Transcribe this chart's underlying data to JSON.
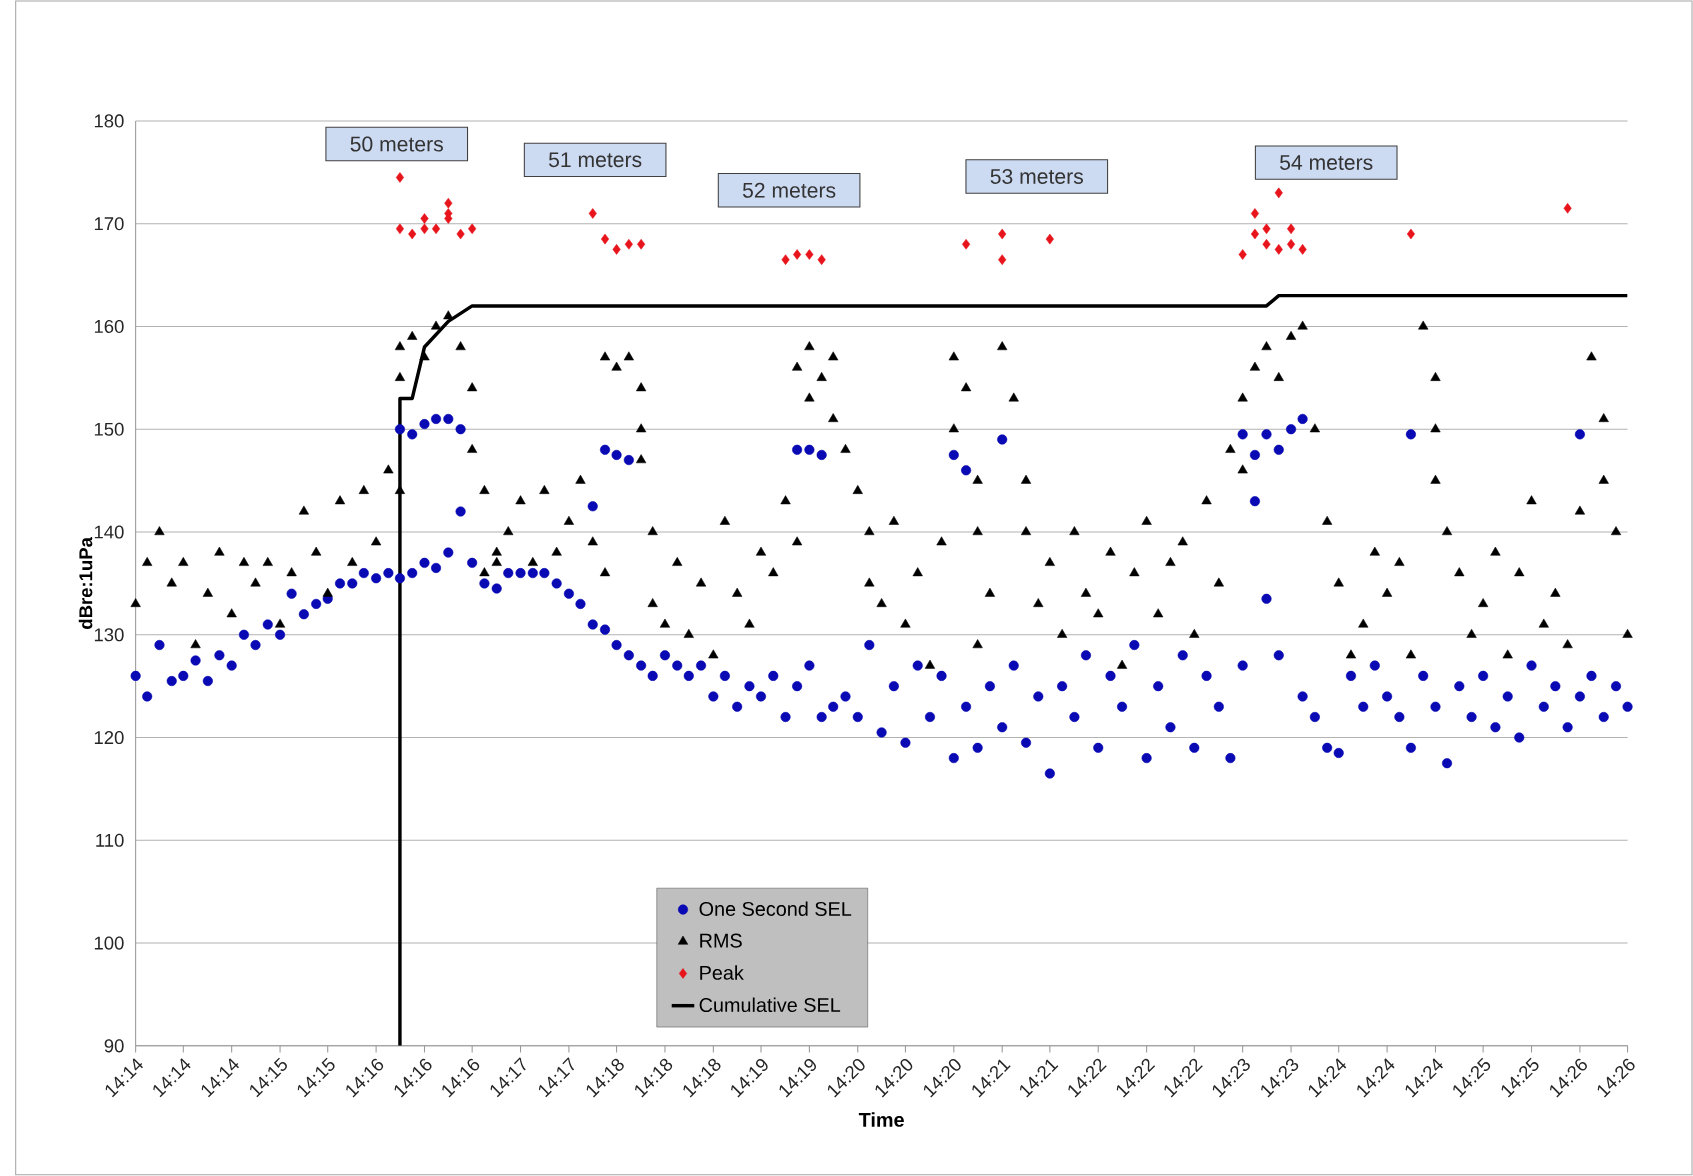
{
  "chart_data": {
    "type": "scatter",
    "xlabel": "Time",
    "ylabel": "dBre:1uPa",
    "xlim": [
      14.2267,
      14.4333
    ],
    "ylim": [
      90,
      180
    ],
    "yticks": [
      90,
      100,
      110,
      120,
      130,
      140,
      150,
      160,
      170,
      180
    ],
    "xticks": [
      {
        "value": 14.2267,
        "label": "14:14"
      },
      {
        "value": 14.2333,
        "label": "14:14"
      },
      {
        "value": 14.24,
        "label": "14:14"
      },
      {
        "value": 14.2467,
        "label": "14:15"
      },
      {
        "value": 14.2533,
        "label": "14:15"
      },
      {
        "value": 14.26,
        "label": "14:16"
      },
      {
        "value": 14.2667,
        "label": "14:16"
      },
      {
        "value": 14.2733,
        "label": "14:16"
      },
      {
        "value": 14.28,
        "label": "14:17"
      },
      {
        "value": 14.2867,
        "label": "14:17"
      },
      {
        "value": 14.2933,
        "label": "14:18"
      },
      {
        "value": 14.3,
        "label": "14:18"
      },
      {
        "value": 14.3067,
        "label": "14:18"
      },
      {
        "value": 14.3133,
        "label": "14:19"
      },
      {
        "value": 14.32,
        "label": "14:19"
      },
      {
        "value": 14.3267,
        "label": "14:20"
      },
      {
        "value": 14.3333,
        "label": "14:20"
      },
      {
        "value": 14.34,
        "label": "14:20"
      },
      {
        "value": 14.3467,
        "label": "14:21"
      },
      {
        "value": 14.3533,
        "label": "14:21"
      },
      {
        "value": 14.36,
        "label": "14:22"
      },
      {
        "value": 14.3667,
        "label": "14:22"
      },
      {
        "value": 14.3733,
        "label": "14:22"
      },
      {
        "value": 14.38,
        "label": "14:23"
      },
      {
        "value": 14.3867,
        "label": "14:23"
      },
      {
        "value": 14.3933,
        "label": "14:24"
      },
      {
        "value": 14.4,
        "label": "14:24"
      },
      {
        "value": 14.4067,
        "label": "14:24"
      },
      {
        "value": 14.4133,
        "label": "14:25"
      },
      {
        "value": 14.42,
        "label": "14:25"
      },
      {
        "value": 14.4267,
        "label": "14:26"
      },
      {
        "value": 14.4333,
        "label": "14:26"
      }
    ],
    "grid": "y",
    "legend": "bottom",
    "series": [
      {
        "name": "One Second SEL",
        "color": "#0a0ab4",
        "marker": "circle",
        "x": [
          14.2267,
          14.2283,
          14.23,
          14.2317,
          14.2333,
          14.235,
          14.2367,
          14.2383,
          14.24,
          14.2417,
          14.2433,
          14.245,
          14.2467,
          14.2483,
          14.25,
          14.2517,
          14.2533,
          14.255,
          14.2567,
          14.2583,
          14.26,
          14.2617,
          14.2633,
          14.2633,
          14.265,
          14.265,
          14.2667,
          14.2667,
          14.2683,
          14.2683,
          14.27,
          14.27,
          14.2717,
          14.2717,
          14.2733,
          14.275,
          14.2767,
          14.2783,
          14.28,
          14.2817,
          14.2833,
          14.285,
          14.2867,
          14.2883,
          14.29,
          14.29,
          14.2917,
          14.2917,
          14.2933,
          14.2933,
          14.295,
          14.295,
          14.2967,
          14.2983,
          14.3,
          14.3017,
          14.3033,
          14.305,
          14.3067,
          14.3083,
          14.31,
          14.3117,
          14.3133,
          14.315,
          14.3167,
          14.3183,
          14.3183,
          14.32,
          14.32,
          14.3217,
          14.3217,
          14.3233,
          14.325,
          14.3267,
          14.3283,
          14.33,
          14.3317,
          14.3333,
          14.335,
          14.3367,
          14.3383,
          14.34,
          14.34,
          14.3417,
          14.3417,
          14.3433,
          14.345,
          14.3467,
          14.3467,
          14.3483,
          14.35,
          14.3517,
          14.3533,
          14.355,
          14.3567,
          14.3583,
          14.36,
          14.3617,
          14.3633,
          14.365,
          14.3667,
          14.3683,
          14.37,
          14.3717,
          14.3733,
          14.375,
          14.3767,
          14.3783,
          14.38,
          14.38,
          14.3817,
          14.3817,
          14.3833,
          14.3833,
          14.385,
          14.385,
          14.3867,
          14.3883,
          14.3883,
          14.39,
          14.3917,
          14.3933,
          14.395,
          14.3967,
          14.3983,
          14.4,
          14.4017,
          14.4033,
          14.4033,
          14.405,
          14.4067,
          14.4083,
          14.41,
          14.4117,
          14.4133,
          14.415,
          14.4167,
          14.4183,
          14.42,
          14.4217,
          14.4233,
          14.425,
          14.4267,
          14.4267,
          14.4283,
          14.43,
          14.4317,
          14.4333
        ],
        "values": [
          126,
          124,
          129,
          125.5,
          126,
          127.5,
          125.5,
          128,
          127,
          130,
          129,
          131,
          130,
          134,
          132,
          133,
          133.5,
          135,
          135,
          136,
          135.5,
          136,
          135.5,
          150,
          149.5,
          136,
          150.5,
          137,
          151,
          136.5,
          151,
          138,
          150,
          142,
          137,
          135,
          134.5,
          136,
          136,
          136,
          136,
          135,
          134,
          133,
          131,
          142.5,
          130.5,
          148,
          147.5,
          129,
          147,
          128,
          127,
          126,
          128,
          127,
          126,
          127,
          124,
          126,
          123,
          125,
          124,
          126,
          122,
          148,
          125,
          148,
          127,
          147.5,
          122,
          123,
          124,
          122,
          129,
          120.5,
          125,
          119.5,
          127,
          122,
          126,
          118,
          147.5,
          146,
          123,
          119,
          125,
          149,
          121,
          127,
          119.5,
          124,
          116.5,
          125,
          122,
          128,
          119,
          126,
          123,
          129,
          118,
          125,
          121,
          128,
          119,
          126,
          123,
          118,
          149.5,
          127,
          147.5,
          143,
          149.5,
          133.5,
          148,
          128,
          150,
          151,
          124,
          122,
          119,
          118.5,
          126,
          123,
          127,
          124,
          122,
          149.5,
          119,
          126,
          123,
          117.5,
          125,
          122,
          126,
          121,
          124,
          120,
          127,
          123,
          125,
          121,
          124,
          149.5,
          126,
          122,
          125,
          123
        ]
      },
      {
        "name": "RMS",
        "color": "#000000",
        "marker": "triangle",
        "x": [
          14.2267,
          14.2283,
          14.23,
          14.2317,
          14.2333,
          14.235,
          14.2367,
          14.2383,
          14.24,
          14.2417,
          14.2433,
          14.245,
          14.2467,
          14.2483,
          14.25,
          14.2517,
          14.2533,
          14.255,
          14.2567,
          14.2583,
          14.26,
          14.2617,
          14.2633,
          14.2633,
          14.2633,
          14.265,
          14.2667,
          14.2683,
          14.27,
          14.2717,
          14.2733,
          14.2733,
          14.275,
          14.275,
          14.2767,
          14.2767,
          14.2783,
          14.28,
          14.2817,
          14.2833,
          14.285,
          14.2867,
          14.2883,
          14.29,
          14.2917,
          14.2917,
          14.2933,
          14.295,
          14.2967,
          14.2967,
          14.2967,
          14.2983,
          14.2983,
          14.3,
          14.3017,
          14.3033,
          14.305,
          14.3067,
          14.3083,
          14.31,
          14.3117,
          14.3133,
          14.315,
          14.3167,
          14.3183,
          14.3183,
          14.32,
          14.32,
          14.3217,
          14.3233,
          14.3233,
          14.325,
          14.3267,
          14.3283,
          14.3283,
          14.33,
          14.3317,
          14.3333,
          14.335,
          14.3367,
          14.3383,
          14.34,
          14.34,
          14.3417,
          14.3433,
          14.3433,
          14.3433,
          14.345,
          14.3467,
          14.3483,
          14.35,
          14.35,
          14.3517,
          14.3533,
          14.355,
          14.3567,
          14.3583,
          14.36,
          14.3617,
          14.3633,
          14.365,
          14.3667,
          14.3683,
          14.37,
          14.3717,
          14.3733,
          14.375,
          14.3767,
          14.3783,
          14.38,
          14.38,
          14.3817,
          14.3833,
          14.385,
          14.3867,
          14.3883,
          14.39,
          14.3917,
          14.3933,
          14.395,
          14.3967,
          14.3983,
          14.4,
          14.4017,
          14.4033,
          14.405,
          14.4067,
          14.4067,
          14.4067,
          14.4083,
          14.41,
          14.4117,
          14.4133,
          14.415,
          14.4167,
          14.4183,
          14.42,
          14.4217,
          14.4233,
          14.425,
          14.4267,
          14.4283,
          14.43,
          14.43,
          14.4317,
          14.4333
        ],
        "values": [
          133,
          137,
          140,
          135,
          137,
          129,
          134,
          138,
          132,
          137,
          135,
          137,
          131,
          136,
          142,
          138,
          134,
          143,
          137,
          144,
          139,
          146,
          144,
          158,
          155,
          159,
          157,
          160,
          161,
          158,
          154,
          148,
          144,
          136,
          138,
          137,
          140,
          143,
          137,
          144,
          138,
          141,
          145,
          139,
          136,
          157,
          156,
          157,
          154,
          150,
          147,
          140,
          133,
          131,
          137,
          130,
          135,
          128,
          141,
          134,
          131,
          138,
          136,
          143,
          139,
          156,
          153,
          158,
          155,
          157,
          151,
          148,
          144,
          140,
          135,
          133,
          141,
          131,
          136,
          127,
          139,
          157,
          150,
          154,
          145,
          140,
          129,
          134,
          158,
          153,
          145,
          140,
          133,
          137,
          130,
          140,
          134,
          132,
          138,
          127,
          136,
          141,
          132,
          137,
          139,
          130,
          143,
          135,
          148,
          146,
          153,
          156,
          158,
          155,
          159,
          160,
          150,
          141,
          135,
          128,
          131,
          138,
          134,
          137,
          128,
          160,
          155,
          150,
          145,
          140,
          136,
          130,
          133,
          138,
          128,
          136,
          143,
          131,
          134,
          129,
          142,
          157,
          151,
          145,
          140,
          130
        ]
      },
      {
        "name": "Peak",
        "color": "#e8141c",
        "marker": "diamond",
        "x": [
          14.2633,
          14.2633,
          14.265,
          14.2667,
          14.2667,
          14.2683,
          14.27,
          14.27,
          14.27,
          14.2717,
          14.2733,
          14.29,
          14.2917,
          14.2933,
          14.295,
          14.2967,
          14.3167,
          14.3183,
          14.32,
          14.3217,
          14.3417,
          14.3467,
          14.3467,
          14.3533,
          14.38,
          14.3817,
          14.3817,
          14.3833,
          14.3833,
          14.385,
          14.385,
          14.3867,
          14.3867,
          14.3883,
          14.4033,
          14.425
        ],
        "values": [
          174.5,
          169.5,
          169,
          169.5,
          170.5,
          169.5,
          171,
          172,
          170.5,
          169,
          169.5,
          171,
          168.5,
          167.5,
          168,
          168,
          166.5,
          167,
          167,
          166.5,
          168,
          169,
          166.5,
          168.5,
          167,
          171,
          169,
          168,
          169.5,
          167.5,
          173,
          168,
          169.5,
          167.5,
          169,
          171.5
        ]
      },
      {
        "name": "Cumulative SEL",
        "color": "#000000",
        "type": "line",
        "marker": "none",
        "x": [
          14.2633,
          14.2633,
          14.265,
          14.2667,
          14.27,
          14.2733,
          14.3833,
          14.385,
          14.4333
        ],
        "values": [
          90,
          153,
          153,
          158,
          160.5,
          162,
          162,
          163,
          163
        ]
      }
    ],
    "annotations": [
      "50 meters",
      "51 meters",
      "52 meters",
      "53 meters",
      "54 meters"
    ]
  }
}
